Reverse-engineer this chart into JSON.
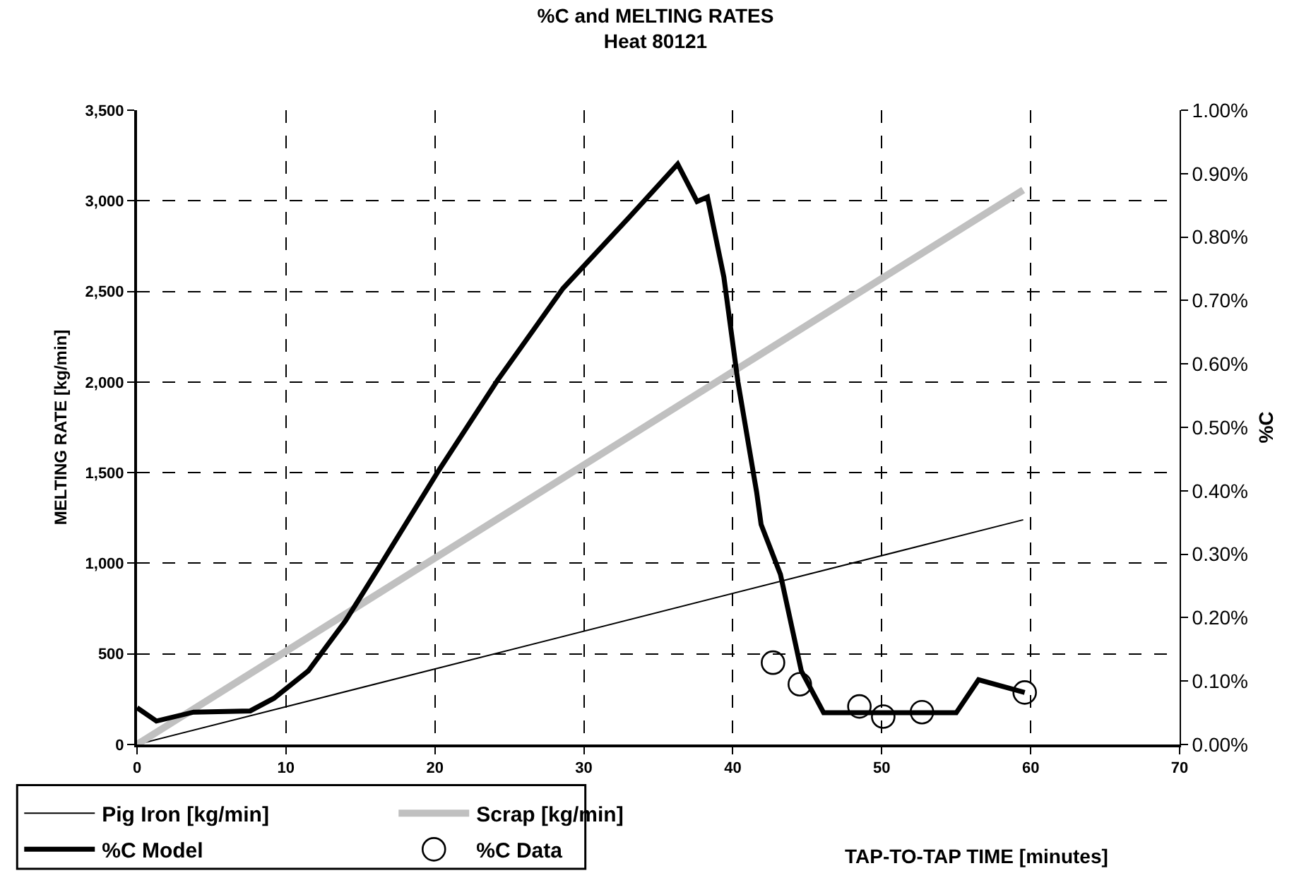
{
  "chart_data": {
    "type": "line",
    "title": "%C and MELTING RATES",
    "subtitle": "Heat 80121",
    "xlabel": "TAP-TO-TAP TIME [minutes]",
    "ylabel": "MELTING RATE [kg/min]",
    "y2label": "%C",
    "xlim": [
      0,
      70
    ],
    "xticks": [
      0,
      10,
      20,
      30,
      40,
      50,
      60,
      70
    ],
    "ylim": [
      0,
      3500
    ],
    "yticks": [
      {
        "value": 0,
        "label": "0"
      },
      {
        "value": 500,
        "label": "500"
      },
      {
        "value": 1000,
        "label": "1,000"
      },
      {
        "value": 1500,
        "label": "1,500"
      },
      {
        "value": 2000,
        "label": "2,000"
      },
      {
        "value": 2500,
        "label": "2,500"
      },
      {
        "value": 3000,
        "label": "3,000"
      },
      {
        "value": 3500,
        "label": "3,500"
      }
    ],
    "y2lim": [
      0,
      1
    ],
    "y2ticks": [
      {
        "value": 0,
        "label": "0.00%"
      },
      {
        "value": 0.1,
        "label": "0.10%"
      },
      {
        "value": 0.2,
        "label": "0.20%"
      },
      {
        "value": 0.3,
        "label": "0.30%"
      },
      {
        "value": 0.4,
        "label": "0.40%"
      },
      {
        "value": 0.5,
        "label": "0.50%"
      },
      {
        "value": 0.6,
        "label": "0.60%"
      },
      {
        "value": 0.7,
        "label": "0.70%"
      },
      {
        "value": 0.8,
        "label": "0.80%"
      },
      {
        "value": 0.9,
        "label": "0.90%"
      },
      {
        "value": 1,
        "label": "1.00%"
      }
    ],
    "grid": true,
    "legend": "bottom left",
    "series": [
      {
        "name": "Pig Iron [kg/min]",
        "color": "#000000",
        "marker": "none",
        "x": [
          0,
          59.5
        ],
        "values": [
          0,
          1240
        ]
      },
      {
        "name": "Scrap [kg/min]",
        "color": "#c0c0c0",
        "marker": "none",
        "x": [
          0,
          59.5
        ],
        "values": [
          0,
          3060
        ]
      },
      {
        "name": "%C Model",
        "color": "#000000",
        "marker": "none",
        "axis": "y2",
        "x": [
          0,
          1.3,
          3.8,
          7.6,
          9.2,
          11.5,
          14,
          16.5,
          20.2,
          24.2,
          28.6,
          33,
          36.3,
          37.6,
          38.3,
          39.4,
          40.35,
          41.6,
          41.9,
          43.2,
          44.6,
          46.1,
          55,
          56.5,
          59.6
        ],
        "values": [
          0.058,
          0.037,
          0.051,
          0.053,
          0.073,
          0.116,
          0.195,
          0.289,
          0.43,
          0.574,
          0.719,
          0.83,
          0.915,
          0.856,
          0.863,
          0.737,
          0.571,
          0.398,
          0.347,
          0.268,
          0.116,
          0.05,
          0.05,
          0.102,
          0.082
        ]
      },
      {
        "name": "%C Data",
        "color": "#000000",
        "type": "scatter",
        "marker": "circle",
        "axis": "y2",
        "x": [
          42.7,
          44.5,
          48.5,
          50.1,
          52.7,
          59.6
        ],
        "values": [
          0.129,
          0.095,
          0.06,
          0.044,
          0.051,
          0.082
        ]
      }
    ]
  }
}
